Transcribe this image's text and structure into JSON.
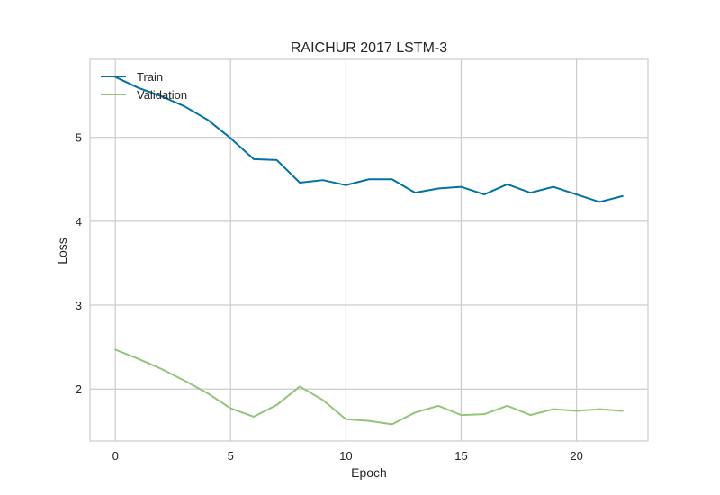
{
  "chart_data": {
    "type": "line",
    "title": "RAICHUR 2017 LSTM-3",
    "xlabel": "Epoch",
    "ylabel": "Loss",
    "xlim": [
      -1.1,
      23.1
    ],
    "ylim": [
      1.38,
      5.93
    ],
    "xticks": [
      "0",
      "5",
      "10",
      "15",
      "20"
    ],
    "yticks": [
      "2",
      "3",
      "4",
      "5"
    ],
    "grid": true,
    "legend_position": "top-left",
    "x": [
      0,
      1,
      2,
      3,
      4,
      5,
      6,
      7,
      8,
      9,
      10,
      11,
      12,
      13,
      14,
      15,
      16,
      17,
      18,
      19,
      20,
      21,
      22
    ],
    "series": [
      {
        "name": "Train",
        "color": "#0173a3",
        "values": [
          5.72,
          5.59,
          5.49,
          5.37,
          5.21,
          4.99,
          4.74,
          4.73,
          4.46,
          4.49,
          4.43,
          4.5,
          4.5,
          4.34,
          4.39,
          4.41,
          4.32,
          4.44,
          4.34,
          4.41,
          4.32,
          4.23,
          4.3
        ]
      },
      {
        "name": "Validation",
        "color": "#96c37a",
        "values": [
          2.47,
          2.36,
          2.24,
          2.1,
          1.95,
          1.77,
          1.67,
          1.81,
          2.03,
          1.87,
          1.64,
          1.62,
          1.58,
          1.72,
          1.8,
          1.69,
          1.7,
          1.8,
          1.69,
          1.76,
          1.74,
          1.76,
          1.74
        ]
      }
    ]
  }
}
